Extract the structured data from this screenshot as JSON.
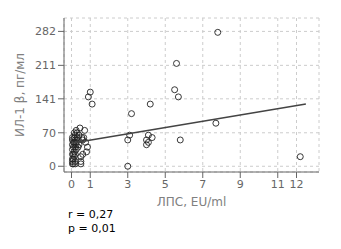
{
  "chart_data": {
    "type": "scatter",
    "xlabel": "ЛПС, EU/ml",
    "ylabel": "ИЛ-1 β, пг/мл",
    "annotations": [
      "r = 0,27",
      "p = 0,01"
    ],
    "xlim": [
      -0.4,
      13.2
    ],
    "ylim": [
      -12,
      310
    ],
    "xticks": [
      0,
      1,
      3,
      5,
      7,
      9,
      11,
      12
    ],
    "yticks": [
      0,
      70,
      141,
      211,
      282
    ],
    "grid": true,
    "series": [
      {
        "type": "scatter",
        "marker": "circle",
        "color": "#222222",
        "x": [
          0.05,
          0.05,
          0.05,
          0.05,
          0.05,
          0.05,
          0.05,
          0.05,
          0.1,
          0.1,
          0.1,
          0.1,
          0.1,
          0.15,
          0.15,
          0.15,
          0.15,
          0.15,
          0.2,
          0.2,
          0.2,
          0.2,
          0.2,
          0.2,
          0.25,
          0.25,
          0.25,
          0.25,
          0.3,
          0.3,
          0.3,
          0.35,
          0.4,
          0.4,
          0.45,
          0.5,
          0.5,
          0.5,
          0.55,
          0.6,
          0.6,
          0.65,
          0.7,
          0.75,
          0.8,
          0.85,
          0.9,
          1.0,
          1.1,
          3.0,
          3.0,
          3.1,
          3.2,
          4.0,
          4.0,
          4.1,
          4.1,
          4.2,
          4.3,
          5.5,
          5.6,
          5.7,
          5.8,
          7.7,
          7.8,
          12.2
        ],
        "values": [
          5,
          10,
          15,
          25,
          35,
          45,
          55,
          60,
          5,
          15,
          25,
          40,
          50,
          30,
          50,
          60,
          70,
          20,
          10,
          5,
          25,
          40,
          55,
          65,
          75,
          50,
          35,
          45,
          60,
          55,
          70,
          40,
          65,
          45,
          80,
          20,
          10,
          5,
          60,
          55,
          25,
          60,
          75,
          50,
          30,
          40,
          145,
          155,
          130,
          0,
          55,
          65,
          110,
          55,
          45,
          65,
          50,
          130,
          60,
          160,
          215,
          145,
          55,
          90,
          280,
          20
        ]
      },
      {
        "type": "line",
        "line_style": "solid",
        "color": "#444444",
        "x": [
          0,
          12.5
        ],
        "values": [
          48,
          130
        ]
      }
    ]
  }
}
